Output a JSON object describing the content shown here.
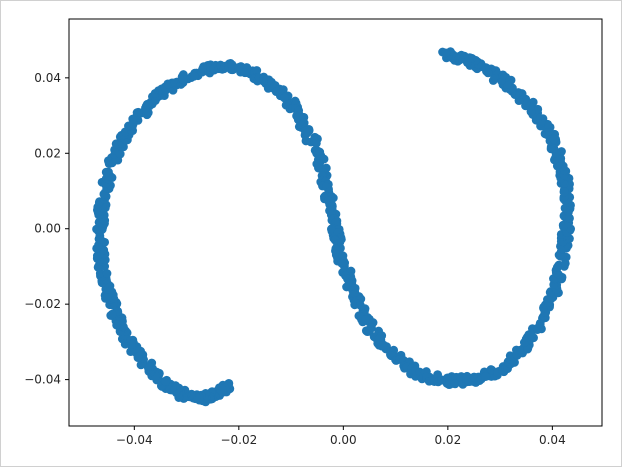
{
  "chart_data": {
    "type": "scatter",
    "title": "",
    "xlabel": "",
    "ylabel": "",
    "xlim": [
      -0.0525,
      0.0495
    ],
    "ylim": [
      -0.0523,
      0.0556
    ],
    "grid": false,
    "legend": "none",
    "marker_color": "#1f77b4",
    "x_ticks": [
      -0.04,
      -0.02,
      0.0,
      0.02,
      0.04
    ],
    "x_tick_labels": [
      "−0.04",
      "−0.02",
      "0.00",
      "0.02",
      "0.04"
    ],
    "y_ticks": [
      -0.04,
      -0.02,
      0.0,
      0.02,
      0.04
    ],
    "y_tick_labels": [
      "−0.04",
      "−0.02",
      "0.00",
      "0.02",
      "0.04"
    ],
    "series": [
      {
        "points": [
          [
            -0.022,
            -0.042
          ],
          [
            -0.0235,
            -0.043
          ],
          [
            -0.025,
            -0.044
          ],
          [
            -0.0265,
            -0.0448
          ],
          [
            -0.028,
            -0.045
          ],
          [
            -0.0295,
            -0.0446
          ],
          [
            -0.031,
            -0.0438
          ],
          [
            -0.0325,
            -0.0425
          ],
          [
            -0.034,
            -0.041
          ],
          [
            -0.0355,
            -0.0392
          ],
          [
            -0.037,
            -0.0372
          ],
          [
            -0.0385,
            -0.035
          ],
          [
            -0.0398,
            -0.0325
          ],
          [
            -0.041,
            -0.03
          ],
          [
            -0.0422,
            -0.027
          ],
          [
            -0.0432,
            -0.024
          ],
          [
            -0.0442,
            -0.0205
          ],
          [
            -0.045,
            -0.017
          ],
          [
            -0.0456,
            -0.013
          ],
          [
            -0.0461,
            -0.009
          ],
          [
            -0.0464,
            -0.005
          ],
          [
            -0.0466,
            -0.001
          ],
          [
            -0.0465,
            0.003
          ],
          [
            -0.0462,
            0.007
          ],
          [
            -0.0456,
            0.011
          ],
          [
            -0.0448,
            0.015
          ],
          [
            -0.0438,
            0.019
          ],
          [
            -0.0426,
            0.0225
          ],
          [
            -0.0412,
            0.026
          ],
          [
            -0.0396,
            0.0292
          ],
          [
            -0.0378,
            0.0322
          ],
          [
            -0.0358,
            0.035
          ],
          [
            -0.0336,
            0.0375
          ],
          [
            -0.0312,
            0.0395
          ],
          [
            -0.0286,
            0.0412
          ],
          [
            -0.026,
            0.0425
          ],
          [
            -0.0235,
            0.043
          ],
          [
            -0.021,
            0.0428
          ],
          [
            -0.0185,
            0.042
          ],
          [
            -0.016,
            0.0405
          ],
          [
            -0.0138,
            0.0385
          ],
          [
            -0.0118,
            0.036
          ],
          [
            -0.01,
            0.0332
          ],
          [
            -0.0084,
            0.03
          ],
          [
            -0.007,
            0.0265
          ],
          [
            -0.0058,
            0.0228
          ],
          [
            -0.0048,
            0.019
          ],
          [
            -0.0039,
            0.015
          ],
          [
            -0.0032,
            0.011
          ],
          [
            -0.0026,
            0.007
          ],
          [
            -0.002,
            0.003
          ],
          [
            -0.0014,
            -0.001
          ],
          [
            -0.0008,
            -0.005
          ],
          [
            -0.0001,
            -0.009
          ],
          [
            0.0008,
            -0.013
          ],
          [
            0.0018,
            -0.017
          ],
          [
            0.003,
            -0.0208
          ],
          [
            0.0044,
            -0.0244
          ],
          [
            0.006,
            -0.0278
          ],
          [
            0.0078,
            -0.031
          ],
          [
            0.0098,
            -0.0338
          ],
          [
            0.012,
            -0.0362
          ],
          [
            0.0144,
            -0.0381
          ],
          [
            0.017,
            -0.0394
          ],
          [
            0.0196,
            -0.0402
          ],
          [
            0.0222,
            -0.0404
          ],
          [
            0.0248,
            -0.04
          ],
          [
            0.0272,
            -0.039
          ],
          [
            0.0296,
            -0.0374
          ],
          [
            0.0318,
            -0.0352
          ],
          [
            0.0338,
            -0.0325
          ],
          [
            0.0356,
            -0.0294
          ],
          [
            0.0372,
            -0.0258
          ],
          [
            0.0386,
            -0.022
          ],
          [
            0.0398,
            -0.018
          ],
          [
            0.0408,
            -0.0138
          ],
          [
            0.0416,
            -0.0096
          ],
          [
            0.0422,
            -0.0054
          ],
          [
            0.0426,
            -0.0012
          ],
          [
            0.0428,
            0.003
          ],
          [
            0.0428,
            0.0072
          ],
          [
            0.0425,
            0.0112
          ],
          [
            0.042,
            0.0152
          ],
          [
            0.0412,
            0.019
          ],
          [
            0.0402,
            0.0226
          ],
          [
            0.039,
            0.026
          ],
          [
            0.0376,
            0.0292
          ],
          [
            0.036,
            0.0322
          ],
          [
            0.0342,
            0.035
          ],
          [
            0.0322,
            0.0375
          ],
          [
            0.03,
            0.0398
          ],
          [
            0.0278,
            0.0418
          ],
          [
            0.0255,
            0.0435
          ],
          [
            0.0232,
            0.0448
          ],
          [
            0.021,
            0.0458
          ],
          [
            0.0196,
            0.0466
          ]
        ]
      }
    ]
  }
}
